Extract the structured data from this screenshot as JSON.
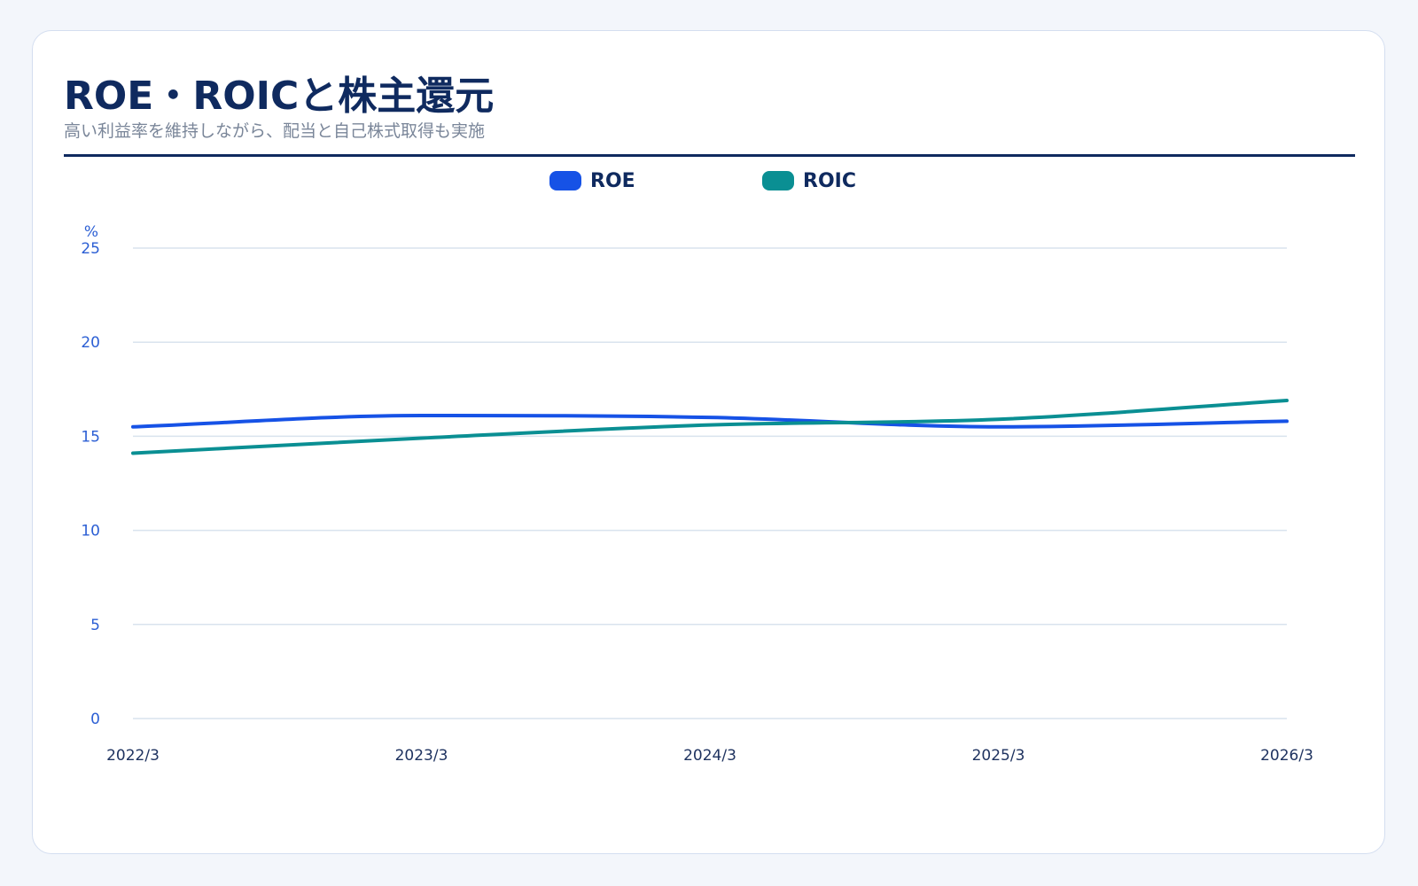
{
  "header": {
    "title": "ROE・ROICと株主還元",
    "subtitle": "高い利益率を維持しながら、配当と自己株式取得も実施"
  },
  "colors": {
    "accent": "#0f2a5f",
    "roe": "#1652e6",
    "roic": "#0a8f93",
    "grid": "#d9e3ee"
  },
  "chart_data": {
    "type": "line",
    "title": "",
    "ylabel": "%",
    "xlabel": "",
    "x": [
      "2022/3",
      "2023/3",
      "2024/3",
      "2025/3",
      "2026/3"
    ],
    "ylim": [
      0,
      25
    ],
    "yticks": [
      0,
      5,
      10,
      15,
      20,
      25
    ],
    "grid": true,
    "legend_position": "top-center",
    "series": [
      {
        "name": "ROE",
        "color": "#1652e6",
        "values": [
          15.5,
          16.1,
          16.0,
          15.5,
          15.8
        ]
      },
      {
        "name": "ROIC",
        "color": "#0a8f93",
        "values": [
          14.1,
          14.9,
          15.6,
          15.9,
          16.9
        ]
      }
    ]
  }
}
